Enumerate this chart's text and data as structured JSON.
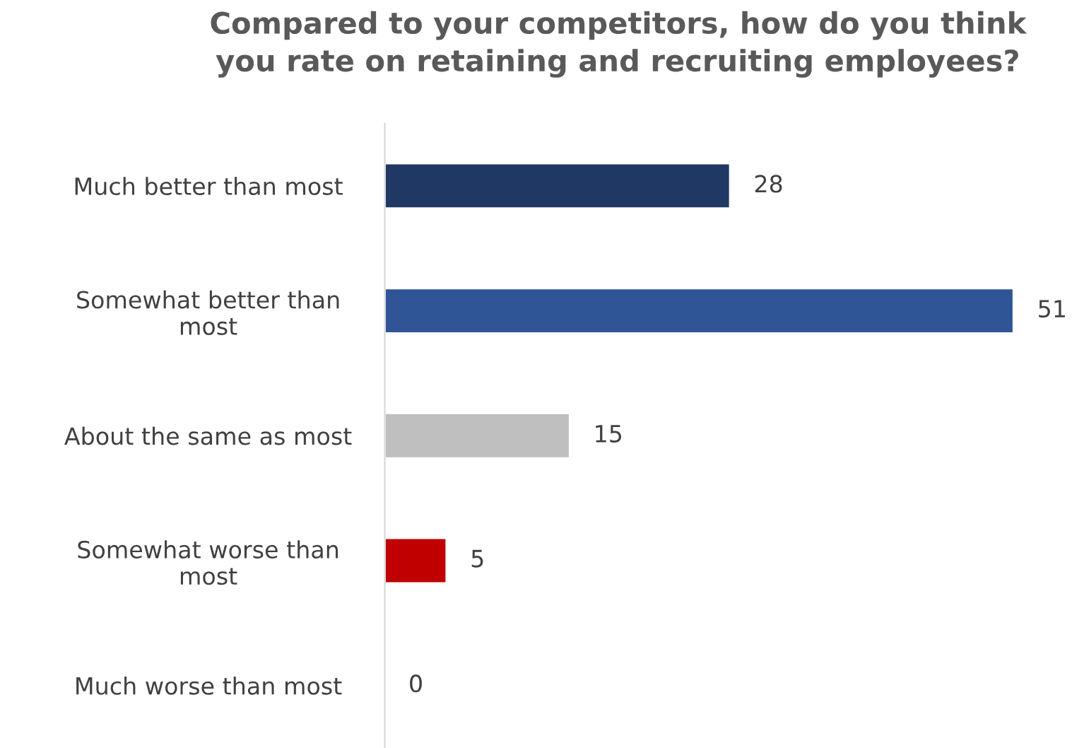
{
  "chart_data": {
    "type": "bar",
    "orientation": "horizontal",
    "title": "Compared to your competitors, how do you think\nyou rate on retaining and recruiting employees?",
    "categories": [
      "Much better than most",
      "Somewhat better than\nmost",
      "About the same as most",
      "Somewhat worse than\nmost",
      "Much worse than most"
    ],
    "values": [
      28,
      51,
      15,
      5,
      0
    ],
    "colors": [
      "#1f3864",
      "#2f5597",
      "#bfbfbf",
      "#c00000",
      null
    ],
    "data_labels": true,
    "grid": false,
    "legend": false
  }
}
